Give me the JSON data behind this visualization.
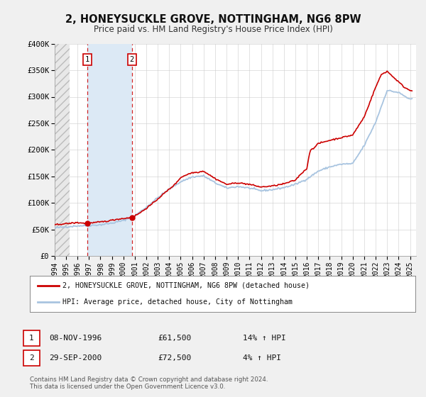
{
  "title": "2, HONEYSUCKLE GROVE, NOTTINGHAM, NG6 8PW",
  "subtitle": "Price paid vs. HM Land Registry's House Price Index (HPI)",
  "title_fontsize": 10.5,
  "subtitle_fontsize": 8.5,
  "sale1_date": 1996.86,
  "sale1_price": 61500,
  "sale1_label": "1",
  "sale2_date": 2000.75,
  "sale2_price": 72500,
  "sale2_label": "2",
  "hpi_line_color": "#a8c4e0",
  "price_line_color": "#cc0000",
  "sale_dot_color": "#cc0000",
  "shade_color": "#dce9f5",
  "hatch_color": "#cccccc",
  "grid_color": "#cccccc",
  "background_color": "#f0f0f0",
  "plot_background": "#ffffff",
  "legend_label1": "2, HONEYSUCKLE GROVE, NOTTINGHAM, NG6 8PW (detached house)",
  "legend_label2": "HPI: Average price, detached house, City of Nottingham",
  "table_row1": [
    "1",
    "08-NOV-1996",
    "£61,500",
    "14% ↑ HPI"
  ],
  "table_row2": [
    "2",
    "29-SEP-2000",
    "£72,500",
    "4% ↑ HPI"
  ],
  "footer": "Contains HM Land Registry data © Crown copyright and database right 2024.\nThis data is licensed under the Open Government Licence v3.0.",
  "ylim": [
    0,
    400000
  ],
  "xlim_start": 1994.0,
  "xlim_end": 2025.5,
  "yticks": [
    0,
    50000,
    100000,
    150000,
    200000,
    250000,
    300000,
    350000,
    400000
  ],
  "ytick_labels": [
    "£0",
    "£50K",
    "£100K",
    "£150K",
    "£200K",
    "£250K",
    "£300K",
    "£350K",
    "£400K"
  ],
  "xticks": [
    1994,
    1995,
    1996,
    1997,
    1998,
    1999,
    2000,
    2001,
    2002,
    2003,
    2004,
    2005,
    2006,
    2007,
    2008,
    2009,
    2010,
    2011,
    2012,
    2013,
    2014,
    2015,
    2016,
    2017,
    2018,
    2019,
    2020,
    2021,
    2022,
    2023,
    2024,
    2025
  ]
}
